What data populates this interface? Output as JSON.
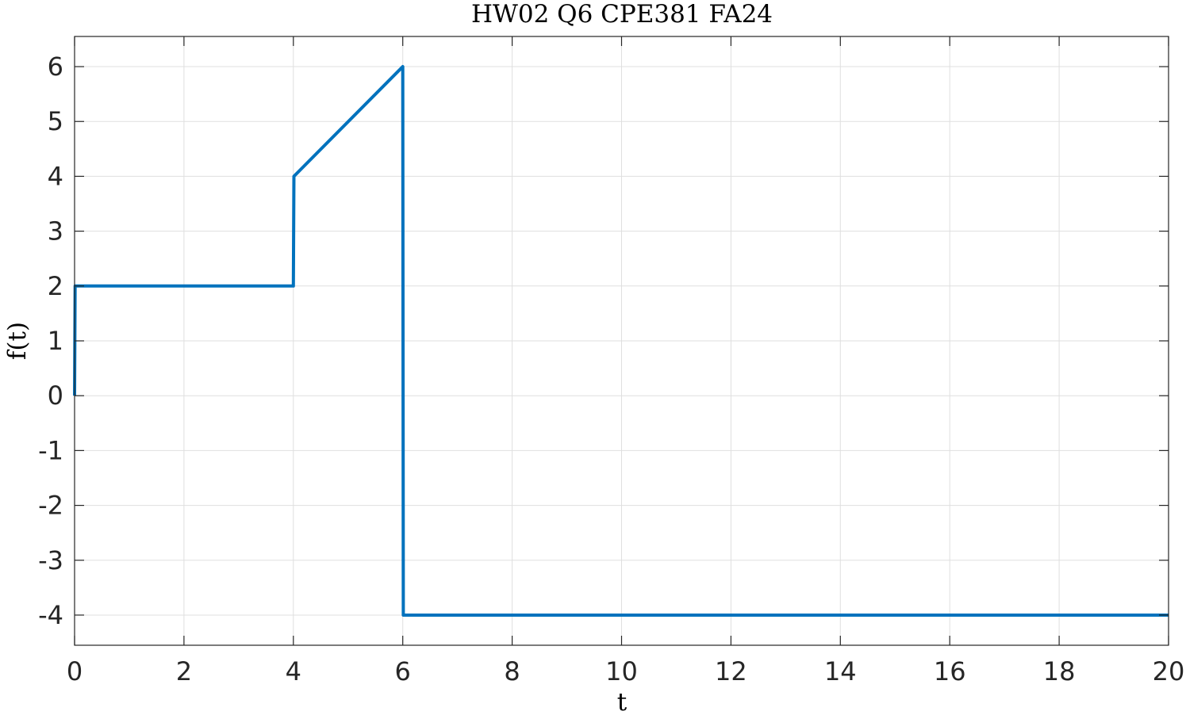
{
  "chart_data": {
    "type": "line",
    "title": "HW02 Q6 CPE381 FA24",
    "xlabel": "t",
    "ylabel": "f(t)",
    "xlim": [
      0,
      20
    ],
    "ylim": [
      -4.55,
      6.55
    ],
    "xticks": [
      0,
      2,
      4,
      6,
      8,
      10,
      12,
      14,
      16,
      18,
      20
    ],
    "xtick_labels": [
      "0",
      "2",
      "4",
      "6",
      "8",
      "10",
      "12",
      "14",
      "16",
      "18",
      "20"
    ],
    "yticks": [
      -4,
      -3,
      -2,
      -1,
      0,
      1,
      2,
      3,
      4,
      5,
      6
    ],
    "ytick_labels": [
      "-4",
      "-3",
      "-2",
      "-1",
      "0",
      "1",
      "2",
      "3",
      "4",
      "5",
      "6"
    ],
    "grid": true,
    "series": [
      {
        "color": "#0072BD",
        "x": [
          0,
          0.01,
          4,
          4.01,
          6,
          6.01,
          20
        ],
        "y": [
          0,
          2,
          2,
          4,
          6,
          -4,
          -4
        ]
      }
    ]
  }
}
